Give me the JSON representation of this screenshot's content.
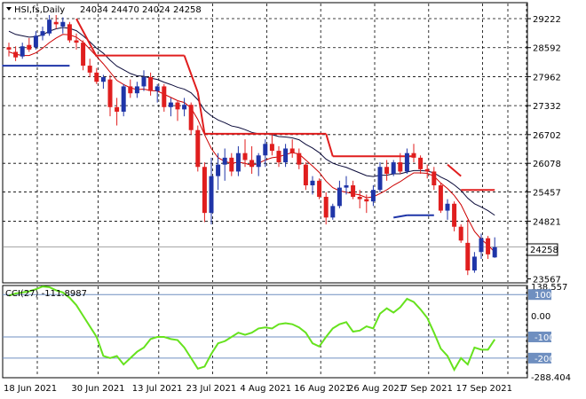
{
  "header": {
    "symbol_line": "HSI,fs,Daily",
    "ohlc": "24034 24470 24024 24258"
  },
  "cci_header": "CCI(27) -111.8987",
  "price_badge": "24258",
  "colors": {
    "bull": "#1f35a8",
    "bear": "#e01e1e",
    "ema": "#0b0b3a",
    "ma": "#cc0000",
    "stop": "#e01e1e",
    "support": "#1f35a8",
    "cci": "#66e21e",
    "level": "#6f8fc0",
    "badge_bg": "#ffffff"
  },
  "chart_data": [
    {
      "type": "candlestick",
      "title": "HSI,fs,Daily",
      "y_ticks": [
        29222,
        28592,
        27962,
        27332,
        26702,
        26078,
        25457,
        24821,
        23567
      ],
      "x_ticks": [
        "18 Jun 2021",
        "30 Jun 2021",
        "13 Jul 2021",
        "23 Jul 2021",
        "4 Aug 2021",
        "16 Aug 2021",
        "26 Aug 2021",
        "7 Sep 2021",
        "17 Sep 2021"
      ],
      "ylim": [
        23500,
        29550
      ],
      "series": [
        {
          "name": "HSI",
          "ohlc": [
            [
              28600,
              28700,
              28400,
              28550
            ],
            [
              28500,
              28620,
              28300,
              28380
            ],
            [
              28400,
              28700,
              28350,
              28620
            ],
            [
              28650,
              28800,
              28500,
              28550
            ],
            [
              28600,
              28950,
              28550,
              28850
            ],
            [
              28850,
              29050,
              28750,
              28950
            ],
            [
              28900,
              29300,
              28850,
              29200
            ],
            [
              29150,
              29300,
              29000,
              29100
            ],
            [
              29050,
              29250,
              28900,
              29150
            ],
            [
              29100,
              29150,
              28700,
              28750
            ],
            [
              28750,
              28900,
              28550,
              28700
            ],
            [
              28700,
              28750,
              28100,
              28200
            ],
            [
              28200,
              28350,
              27950,
              28050
            ],
            [
              28050,
              28150,
              27800,
              27850
            ],
            [
              27850,
              28000,
              27700,
              27950
            ],
            [
              27900,
              28000,
              27100,
              27300
            ],
            [
              27300,
              27500,
              26900,
              27200
            ],
            [
              27200,
              27800,
              27100,
              27750
            ],
            [
              27750,
              27900,
              27500,
              27600
            ],
            [
              27600,
              27850,
              27500,
              27750
            ],
            [
              27750,
              28100,
              27650,
              27950
            ],
            [
              27950,
              28050,
              27550,
              27650
            ],
            [
              27650,
              27800,
              27400,
              27750
            ],
            [
              27750,
              27800,
              27200,
              27300
            ],
            [
              27300,
              27500,
              27100,
              27400
            ],
            [
              27400,
              27450,
              27000,
              27250
            ],
            [
              27250,
              27500,
              27100,
              27350
            ],
            [
              27350,
              27400,
              26700,
              26800
            ],
            [
              26800,
              26900,
              25900,
              26000
            ],
            [
              26000,
              26100,
              24800,
              25000
            ],
            [
              25000,
              26200,
              24750,
              25800
            ],
            [
              25800,
              26300,
              25500,
              26050
            ],
            [
              26050,
              26400,
              25700,
              26200
            ],
            [
              26200,
              26300,
              25800,
              25900
            ],
            [
              25900,
              26450,
              25800,
              26300
            ],
            [
              26300,
              26600,
              26000,
              26150
            ],
            [
              26150,
              26450,
              25850,
              26000
            ],
            [
              26000,
              26300,
              25800,
              26250
            ],
            [
              26250,
              26600,
              26000,
              26500
            ],
            [
              26500,
              26700,
              26250,
              26350
            ],
            [
              26350,
              26450,
              26000,
              26100
            ],
            [
              26100,
              26500,
              26000,
              26400
            ],
            [
              26400,
              26600,
              26200,
              26300
            ],
            [
              26300,
              26400,
              25950,
              26050
            ],
            [
              26050,
              26100,
              25500,
              25600
            ],
            [
              25600,
              25800,
              25400,
              25700
            ],
            [
              25700,
              25750,
              25300,
              25350
            ],
            [
              25350,
              25450,
              24750,
              24900
            ],
            [
              24900,
              25200,
              24850,
              25150
            ],
            [
              25150,
              25700,
              25100,
              25550
            ],
            [
              25550,
              25800,
              25400,
              25600
            ],
            [
              25600,
              25700,
              25300,
              25350
            ],
            [
              25350,
              25500,
              25100,
              25300
            ],
            [
              25300,
              25400,
              25000,
              25250
            ],
            [
              25250,
              25600,
              25150,
              25500
            ],
            [
              25500,
              26100,
              25450,
              26000
            ],
            [
              26000,
              26150,
              25700,
              25850
            ],
            [
              25850,
              26150,
              25800,
              26100
            ],
            [
              26100,
              26300,
              25850,
              25900
            ],
            [
              25900,
              26400,
              25850,
              26300
            ],
            [
              26300,
              26500,
              26100,
              26200
            ],
            [
              26200,
              26250,
              25850,
              25950
            ],
            [
              25950,
              26050,
              25750,
              25900
            ],
            [
              25900,
              26000,
              25500,
              25600
            ],
            [
              25600,
              25650,
              25000,
              25050
            ],
            [
              25050,
              25300,
              24850,
              25200
            ],
            [
              25200,
              25250,
              24600,
              24700
            ],
            [
              24700,
              24750,
              24350,
              24400
            ],
            [
              24350,
              24850,
              23650,
              23750
            ],
            [
              23750,
              24150,
              23700,
              24050
            ],
            [
              24150,
              24550,
              24000,
              24450
            ],
            [
              24450,
              24500,
              24000,
              24100
            ],
            [
              24034,
              24470,
              24024,
              24258
            ]
          ]
        }
      ],
      "overlays": [
        {
          "name": "ema",
          "values": [
            28950,
            28880,
            28850,
            28820,
            28830,
            28870,
            28950,
            29000,
            29030,
            29010,
            28960,
            28850,
            28720,
            28580,
            28470,
            28320,
            28190,
            28110,
            28030,
            27980,
            27970,
            27930,
            27900,
            27840,
            27790,
            27730,
            27690,
            27610,
            27460,
            27230,
            27110,
            27020,
            26960,
            26890,
            26860,
            26810,
            26750,
            26720,
            26720,
            26700,
            26660,
            26650,
            26630,
            26590,
            26490,
            26410,
            26310,
            26170,
            26080,
            26030,
            25990,
            25930,
            25870,
            25810,
            25790,
            25820,
            25820,
            25850,
            25850,
            25890,
            25920,
            25920,
            25910,
            25870,
            25780,
            25710,
            25610,
            25490,
            25320,
            25200,
            25130,
            25050,
            24950
          ]
        },
        {
          "name": "ma",
          "values": [
            28500,
            28450,
            28420,
            28420,
            28480,
            28580,
            28700,
            28800,
            28880,
            28870,
            28820,
            28710,
            28560,
            28400,
            28240,
            28060,
            27880,
            27790,
            27720,
            27680,
            27690,
            27660,
            27650,
            27580,
            27510,
            27440,
            27400,
            27280,
            27030,
            26700,
            26400,
            26200,
            26120,
            26080,
            26100,
            26080,
            26030,
            26080,
            26150,
            26200,
            26220,
            26270,
            26310,
            26280,
            26150,
            26020,
            25880,
            25690,
            25550,
            25480,
            25450,
            25420,
            25390,
            25330,
            25350,
            25420,
            25500,
            25600,
            25680,
            25780,
            25870,
            25870,
            25860,
            25800,
            25650,
            25530,
            25380,
            25180,
            24880,
            24600,
            24430,
            24300,
            24150
          ]
        },
        {
          "name": "stop",
          "segments": [
            {
              "from": 10,
              "to": 13,
              "values": [
                29220,
                28400
              ]
            },
            {
              "from": 13,
              "to": 26,
              "values": [
                28420,
                28420
              ]
            },
            {
              "from": 26,
              "to": 28,
              "values": [
                28420,
                27620
              ]
            },
            {
              "from": 28,
              "to": 29,
              "values": [
                27620,
                26720
              ]
            },
            {
              "from": 29,
              "to": 47,
              "values": [
                26720,
                26720
              ]
            },
            {
              "from": 47,
              "to": 48,
              "values": [
                26720,
                26230
              ]
            },
            {
              "from": 48,
              "to": 60,
              "values": [
                26230,
                26230
              ]
            },
            {
              "from": 65,
              "to": 67,
              "values": [
                26050,
                25800
              ]
            },
            {
              "from": 67,
              "to": 72,
              "values": [
                25500,
                25500
              ]
            }
          ]
        },
        {
          "name": "support",
          "segments": [
            {
              "from": -1,
              "to": 9,
              "values": [
                28200,
                28200
              ]
            },
            {
              "from": 57,
              "to": 59,
              "values": [
                24900,
                24950
              ]
            },
            {
              "from": 59,
              "to": 63,
              "values": [
                24950,
                24950
              ]
            }
          ]
        }
      ]
    },
    {
      "type": "line",
      "title": "CCI(27) -111.8987",
      "y_ticks": [
        "138.557",
        "100",
        "0.00",
        "-100",
        "-200",
        "-288.404"
      ],
      "ylim": [
        -288.404,
        138.557
      ],
      "levels": [
        100,
        -100,
        -200
      ],
      "series": [
        {
          "name": "CCI(27)",
          "values": [
            95,
            105,
            110,
            115,
            125,
            138,
            135,
            120,
            110,
            85,
            50,
            0,
            -50,
            -100,
            -190,
            -200,
            -190,
            -230,
            -200,
            -170,
            -150,
            -110,
            -100,
            -100,
            -110,
            -115,
            -150,
            -200,
            -250,
            -240,
            -180,
            -130,
            -120,
            -100,
            -80,
            -90,
            -80,
            -60,
            -55,
            -60,
            -40,
            -35,
            -40,
            -55,
            -80,
            -130,
            -145,
            -100,
            -60,
            -40,
            -30,
            -75,
            -70,
            -50,
            -60,
            10,
            35,
            15,
            40,
            80,
            65,
            30,
            -10,
            -80,
            -155,
            -190,
            -255,
            -200,
            -230,
            -150,
            -160,
            -160,
            -111.9
          ]
        }
      ]
    }
  ]
}
